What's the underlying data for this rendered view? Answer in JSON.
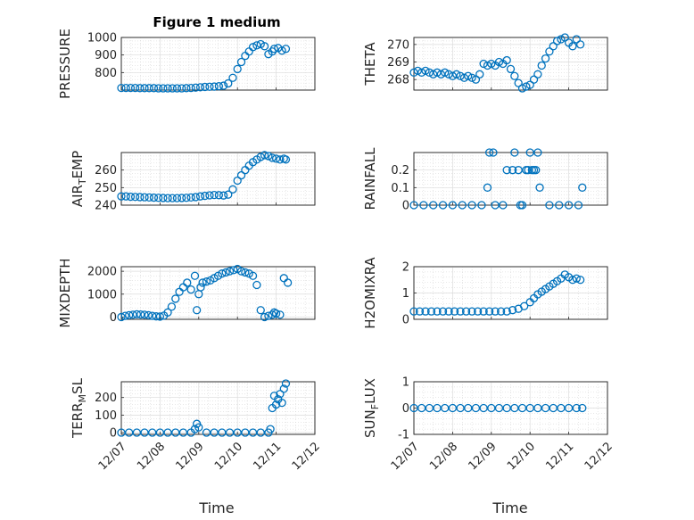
{
  "figure": {
    "title": "Figure 1 medium",
    "marker_color": "#0072BD",
    "x_tick_labels": [
      "12/07",
      "12/08",
      "12/09",
      "12/10",
      "12/11",
      "12/12"
    ],
    "xlabel": "Time"
  },
  "chart_data": [
    {
      "type": "scatter",
      "ylabel": "PRESSURE",
      "title": "Figure 1 medium",
      "xlabel": "",
      "xlim": [
        0,
        5
      ],
      "ylim": [
        700,
        1000
      ],
      "yticks": [
        800,
        900,
        1000
      ],
      "grid": true,
      "x": [
        0.0,
        0.12,
        0.24,
        0.36,
        0.48,
        0.6,
        0.72,
        0.84,
        0.96,
        1.08,
        1.2,
        1.32,
        1.44,
        1.56,
        1.68,
        1.8,
        1.92,
        2.04,
        2.16,
        2.28,
        2.4,
        2.52,
        2.64,
        2.76,
        2.88,
        3.0,
        3.1,
        3.2,
        3.3,
        3.4,
        3.5,
        3.6,
        3.7,
        3.8,
        3.9,
        3.95,
        4.05,
        4.15,
        4.25
      ],
      "y": [
        712,
        712,
        712,
        712,
        711,
        711,
        711,
        711,
        710,
        710,
        710,
        710,
        710,
        710,
        711,
        712,
        714,
        716,
        718,
        719,
        720,
        722,
        725,
        738,
        770,
        820,
        860,
        895,
        920,
        945,
        955,
        962,
        950,
        905,
        920,
        935,
        940,
        925,
        935
      ]
    },
    {
      "type": "scatter",
      "ylabel": "THETA",
      "xlabel": "",
      "xlim": [
        0,
        5
      ],
      "ylim": [
        267.4,
        270.4
      ],
      "yticks": [
        268,
        269,
        270
      ],
      "grid": true,
      "x": [
        0.0,
        0.1,
        0.2,
        0.3,
        0.4,
        0.5,
        0.6,
        0.7,
        0.8,
        0.9,
        1.0,
        1.1,
        1.2,
        1.3,
        1.4,
        1.5,
        1.6,
        1.7,
        1.8,
        1.9,
        2.0,
        2.1,
        2.2,
        2.3,
        2.4,
        2.5,
        2.6,
        2.7,
        2.8,
        2.9,
        3.0,
        3.1,
        3.2,
        3.3,
        3.4,
        3.5,
        3.6,
        3.7,
        3.8,
        3.9,
        4.0,
        4.1,
        4.2,
        4.3
      ],
      "y": [
        268.4,
        268.5,
        268.4,
        268.5,
        268.4,
        268.3,
        268.4,
        268.3,
        268.4,
        268.3,
        268.2,
        268.3,
        268.2,
        268.1,
        268.2,
        268.1,
        268.0,
        268.3,
        268.9,
        268.8,
        268.9,
        268.8,
        269.0,
        268.9,
        269.1,
        268.6,
        268.2,
        267.8,
        267.5,
        267.6,
        267.7,
        268.0,
        268.3,
        268.8,
        269.2,
        269.6,
        269.9,
        270.2,
        270.3,
        270.4,
        270.1,
        269.9,
        270.3,
        270.0
      ]
    },
    {
      "type": "scatter",
      "ylabel": "AIR_TEMP",
      "xlabel": "",
      "xlim": [
        0,
        5
      ],
      "ylim": [
        240,
        270
      ],
      "yticks": [
        240,
        250,
        260
      ],
      "grid": true,
      "x": [
        0.0,
        0.12,
        0.24,
        0.36,
        0.48,
        0.6,
        0.72,
        0.84,
        0.96,
        1.08,
        1.2,
        1.32,
        1.44,
        1.56,
        1.68,
        1.8,
        1.92,
        2.04,
        2.16,
        2.28,
        2.4,
        2.52,
        2.64,
        2.76,
        2.88,
        3.0,
        3.1,
        3.2,
        3.3,
        3.4,
        3.5,
        3.6,
        3.7,
        3.8,
        3.9,
        4.0,
        4.1,
        4.2,
        4.25
      ],
      "y": [
        245,
        245,
        244.8,
        244.7,
        244.6,
        244.5,
        244.4,
        244.3,
        244.2,
        244.1,
        244.0,
        244.0,
        244.0,
        244.1,
        244.2,
        244.4,
        244.6,
        245.0,
        245.3,
        245.6,
        245.8,
        245.7,
        245.5,
        246,
        249,
        254,
        257,
        260,
        262.5,
        264.5,
        266,
        267.5,
        268.5,
        268,
        267,
        266.5,
        266,
        266.5,
        266
      ]
    },
    {
      "type": "scatter",
      "ylabel": "RAINFALL",
      "xlabel": "",
      "xlim": [
        0,
        5
      ],
      "ylim": [
        0,
        0.3
      ],
      "yticks": [
        0,
        0.1,
        0.2
      ],
      "grid": true,
      "x": [
        0.0,
        0.25,
        0.5,
        0.75,
        1.0,
        1.25,
        1.5,
        1.75,
        1.9,
        1.95,
        2.05,
        2.1,
        2.3,
        2.4,
        2.55,
        2.6,
        2.7,
        2.75,
        2.8,
        2.9,
        2.95,
        3.0,
        3.05,
        3.1,
        3.15,
        3.2,
        3.25,
        3.5,
        3.75,
        4.0,
        4.25,
        4.35
      ],
      "y": [
        0,
        0,
        0,
        0,
        0,
        0,
        0,
        0,
        0.1,
        0.3,
        0.3,
        0,
        0,
        0.2,
        0.2,
        0.3,
        0.2,
        0,
        0,
        0.2,
        0.2,
        0.3,
        0.2,
        0.2,
        0.2,
        0.3,
        0.1,
        0,
        0,
        0,
        0,
        0.1
      ]
    },
    {
      "type": "scatter",
      "ylabel": "MIXDEPTH",
      "xlabel": "",
      "xlim": [
        0,
        5
      ],
      "ylim": [
        -100,
        2200
      ],
      "yticks": [
        0,
        1000,
        2000
      ],
      "grid": true,
      "x": [
        0.0,
        0.1,
        0.2,
        0.3,
        0.4,
        0.5,
        0.6,
        0.7,
        0.8,
        0.9,
        1.0,
        1.1,
        1.2,
        1.3,
        1.4,
        1.5,
        1.6,
        1.7,
        1.8,
        1.9,
        1.95,
        2.0,
        2.05,
        2.1,
        2.2,
        2.3,
        2.4,
        2.5,
        2.6,
        2.7,
        2.8,
        2.9,
        3.0,
        3.1,
        3.2,
        3.3,
        3.4,
        3.5,
        3.6,
        3.7,
        3.8,
        3.9,
        3.95,
        4.0,
        4.1,
        4.2,
        4.3
      ],
      "y": [
        0,
        50,
        80,
        100,
        120,
        110,
        100,
        80,
        50,
        30,
        20,
        60,
        200,
        450,
        800,
        1100,
        1300,
        1500,
        1200,
        1800,
        300,
        1000,
        1300,
        1500,
        1550,
        1600,
        1700,
        1800,
        1900,
        1950,
        2000,
        2050,
        2100,
        2000,
        1950,
        1900,
        1800,
        1400,
        300,
        0,
        50,
        100,
        200,
        150,
        100,
        1700,
        1500
      ]
    },
    {
      "type": "scatter",
      "ylabel": "H2OMIXRA",
      "xlabel": "",
      "xlim": [
        0,
        5
      ],
      "ylim": [
        0,
        2
      ],
      "yticks": [
        0,
        1,
        2
      ],
      "grid": true,
      "x": [
        0.0,
        0.15,
        0.3,
        0.45,
        0.6,
        0.75,
        0.9,
        1.05,
        1.2,
        1.35,
        1.5,
        1.65,
        1.8,
        1.95,
        2.1,
        2.25,
        2.4,
        2.55,
        2.7,
        2.85,
        3.0,
        3.1,
        3.2,
        3.3,
        3.4,
        3.5,
        3.6,
        3.7,
        3.8,
        3.9,
        4.0,
        4.1,
        4.2,
        4.3
      ],
      "y": [
        0.3,
        0.3,
        0.3,
        0.3,
        0.3,
        0.3,
        0.3,
        0.3,
        0.3,
        0.3,
        0.3,
        0.3,
        0.3,
        0.3,
        0.3,
        0.3,
        0.3,
        0.35,
        0.4,
        0.5,
        0.65,
        0.8,
        0.95,
        1.05,
        1.15,
        1.25,
        1.35,
        1.45,
        1.55,
        1.7,
        1.6,
        1.5,
        1.55,
        1.5
      ]
    },
    {
      "type": "scatter",
      "ylabel": "TERR_MSL",
      "xlabel": "",
      "xlim": [
        0,
        5
      ],
      "ylim": [
        -10,
        290
      ],
      "yticks": [
        0,
        100,
        200
      ],
      "grid": true,
      "x": [
        0.0,
        0.2,
        0.4,
        0.6,
        0.8,
        1.0,
        1.2,
        1.4,
        1.6,
        1.8,
        1.9,
        1.95,
        2.0,
        2.2,
        2.4,
        2.6,
        2.8,
        3.0,
        3.2,
        3.4,
        3.6,
        3.8,
        3.85,
        3.9,
        3.95,
        4.0,
        4.05,
        4.1,
        4.15,
        4.2,
        4.25
      ],
      "y": [
        0,
        0,
        0,
        0,
        0,
        0,
        0,
        0,
        0,
        0,
        20,
        50,
        30,
        0,
        0,
        0,
        0,
        0,
        0,
        0,
        0,
        0,
        20,
        140,
        210,
        160,
        190,
        220,
        170,
        250,
        280
      ]
    },
    {
      "type": "scatter",
      "ylabel": "SUN_FLUX",
      "xlabel": "",
      "xlim": [
        0,
        5
      ],
      "ylim": [
        -1,
        1
      ],
      "yticks": [
        -1,
        0,
        1
      ],
      "grid": true,
      "x": [
        0.0,
        0.2,
        0.4,
        0.6,
        0.8,
        1.0,
        1.2,
        1.4,
        1.6,
        1.8,
        2.0,
        2.2,
        2.4,
        2.6,
        2.8,
        3.0,
        3.2,
        3.4,
        3.6,
        3.8,
        4.0,
        4.2,
        4.35
      ],
      "y": [
        0,
        0,
        0,
        0,
        0,
        0,
        0,
        0,
        0,
        0,
        0,
        0,
        0,
        0,
        0,
        0,
        0,
        0,
        0,
        0,
        0,
        0,
        0
      ]
    }
  ]
}
